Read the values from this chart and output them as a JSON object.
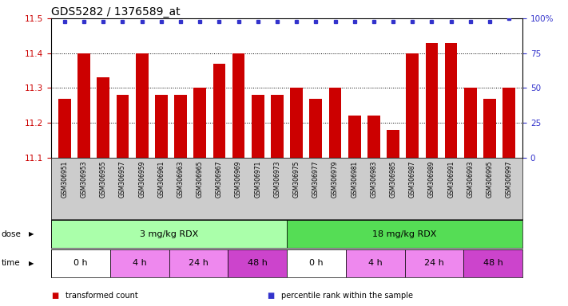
{
  "title": "GDS5282 / 1376589_at",
  "samples": [
    "GSM306951",
    "GSM306953",
    "GSM306955",
    "GSM306957",
    "GSM306959",
    "GSM306961",
    "GSM306963",
    "GSM306965",
    "GSM306967",
    "GSM306969",
    "GSM306971",
    "GSM306973",
    "GSM306975",
    "GSM306977",
    "GSM306979",
    "GSM306981",
    "GSM306983",
    "GSM306985",
    "GSM306987",
    "GSM306989",
    "GSM306991",
    "GSM306993",
    "GSM306995",
    "GSM306997"
  ],
  "values": [
    11.27,
    11.4,
    11.33,
    11.28,
    11.4,
    11.28,
    11.28,
    11.3,
    11.37,
    11.4,
    11.28,
    11.28,
    11.3,
    11.27,
    11.3,
    11.22,
    11.22,
    11.18,
    11.4,
    11.43,
    11.43,
    11.3,
    11.27,
    11.3
  ],
  "percentile_values": [
    98,
    98,
    98,
    98,
    98,
    98,
    98,
    98,
    98,
    98,
    98,
    98,
    98,
    98,
    98,
    98,
    98,
    98,
    98,
    98,
    98,
    98,
    98,
    100
  ],
  "bar_color": "#cc0000",
  "dot_color": "#3333cc",
  "ylim_left": [
    11.1,
    11.5
  ],
  "ylim_right": [
    0,
    100
  ],
  "yticks_left": [
    11.1,
    11.2,
    11.3,
    11.4,
    11.5
  ],
  "yticks_right": [
    0,
    25,
    50,
    75,
    100
  ],
  "ytick_labels_right": [
    "0",
    "25",
    "50",
    "75",
    "100%"
  ],
  "dose_row": {
    "label": "dose",
    "segments": [
      {
        "text": "3 mg/kg RDX",
        "start": 0,
        "end": 12,
        "color": "#aaffaa"
      },
      {
        "text": "18 mg/kg RDX",
        "start": 12,
        "end": 24,
        "color": "#55dd55"
      }
    ]
  },
  "time_row": {
    "label": "time",
    "segments": [
      {
        "text": "0 h",
        "start": 0,
        "end": 3,
        "color": "#ffffff"
      },
      {
        "text": "4 h",
        "start": 3,
        "end": 6,
        "color": "#ee88ee"
      },
      {
        "text": "24 h",
        "start": 6,
        "end": 9,
        "color": "#ee88ee"
      },
      {
        "text": "48 h",
        "start": 9,
        "end": 12,
        "color": "#cc44cc"
      },
      {
        "text": "0 h",
        "start": 12,
        "end": 15,
        "color": "#ffffff"
      },
      {
        "text": "4 h",
        "start": 15,
        "end": 18,
        "color": "#ee88ee"
      },
      {
        "text": "24 h",
        "start": 18,
        "end": 21,
        "color": "#ee88ee"
      },
      {
        "text": "48 h",
        "start": 21,
        "end": 24,
        "color": "#cc44cc"
      }
    ]
  },
  "legend": [
    {
      "color": "#cc0000",
      "label": "transformed count"
    },
    {
      "color": "#3333cc",
      "label": "percentile rank within the sample"
    }
  ],
  "background_color": "#ffffff",
  "title_fontsize": 10,
  "axis_label_color_left": "#cc0000",
  "axis_label_color_right": "#3333cc",
  "sample_bg_color": "#cccccc",
  "plot_bg_color": "#ffffff"
}
